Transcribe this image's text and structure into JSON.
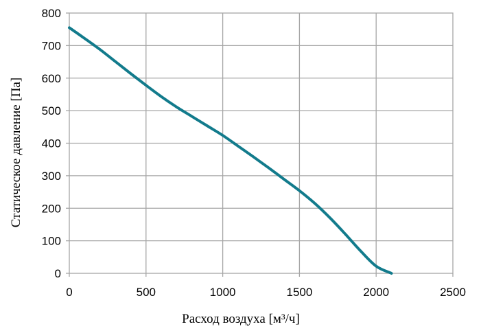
{
  "chart_data": {
    "type": "line",
    "title": "",
    "xlabel": "Расход воздуха [м³/ч]",
    "ylabel": "Статическое давление [Па]",
    "xlim": [
      0,
      2500
    ],
    "ylim": [
      0,
      800
    ],
    "xticks": [
      "0",
      "500",
      "1000",
      "1500",
      "2000",
      "2500"
    ],
    "yticks": [
      "0",
      "100",
      "200",
      "300",
      "400",
      "500",
      "600",
      "700",
      "800"
    ],
    "grid": true,
    "legend": "none",
    "series": [
      {
        "color": "#127b8c",
        "x": [
          0,
          100,
          200,
          300,
          400,
          500,
          600,
          700,
          800,
          900,
          1000,
          1100,
          1200,
          1300,
          1400,
          1500,
          1600,
          1700,
          1800,
          1900,
          2000,
          2100
        ],
        "y": [
          755,
          722,
          688,
          651,
          614,
          578,
          543,
          511,
          482,
          453,
          424,
          391,
          358,
          324,
          289,
          254,
          215,
          170,
          120,
          68,
          22,
          0
        ]
      }
    ]
  }
}
